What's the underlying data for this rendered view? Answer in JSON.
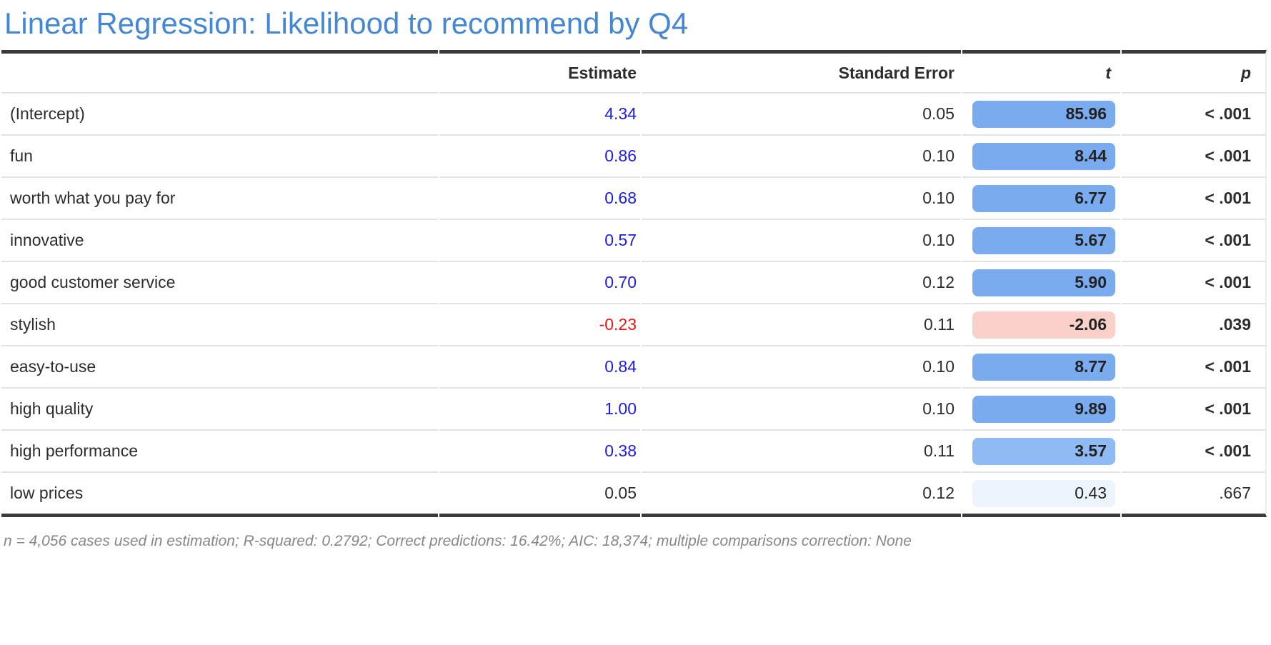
{
  "chart_data": {
    "type": "table",
    "title": "Linear Regression: Likelihood to recommend by Q4",
    "columns": [
      "",
      "Estimate",
      "Standard Error",
      "t",
      "p"
    ],
    "rows": [
      {
        "label": "(Intercept)",
        "estimate": "4.34",
        "estimate_color": "#1c1ce8",
        "standard_error": "0.05",
        "t": "85.96",
        "t_bar_color": "#7babef",
        "t_bold": true,
        "p": "< .001",
        "p_bold": true
      },
      {
        "label": "fun",
        "estimate": "0.86",
        "estimate_color": "#1c1ce8",
        "standard_error": "0.10",
        "t": "8.44",
        "t_bar_color": "#7babef",
        "t_bold": true,
        "p": "< .001",
        "p_bold": true
      },
      {
        "label": "worth what you pay for",
        "estimate": "0.68",
        "estimate_color": "#1c1ce8",
        "standard_error": "0.10",
        "t": "6.77",
        "t_bar_color": "#7babef",
        "t_bold": true,
        "p": "< .001",
        "p_bold": true
      },
      {
        "label": "innovative",
        "estimate": "0.57",
        "estimate_color": "#1c1ce8",
        "standard_error": "0.10",
        "t": "5.67",
        "t_bar_color": "#7babef",
        "t_bold": true,
        "p": "< .001",
        "p_bold": true
      },
      {
        "label": "good customer service",
        "estimate": "0.70",
        "estimate_color": "#1c1ce8",
        "standard_error": "0.12",
        "t": "5.90",
        "t_bar_color": "#7babef",
        "t_bold": true,
        "p": "< .001",
        "p_bold": true
      },
      {
        "label": "stylish",
        "estimate": "-0.23",
        "estimate_color": "#ed1515",
        "standard_error": "0.11",
        "t": "-2.06",
        "t_bar_color": "#fbcfca",
        "t_bold": true,
        "p": ".039",
        "p_bold": true
      },
      {
        "label": "easy-to-use",
        "estimate": "0.84",
        "estimate_color": "#1c1ce8",
        "standard_error": "0.10",
        "t": "8.77",
        "t_bar_color": "#7babef",
        "t_bold": true,
        "p": "< .001",
        "p_bold": true
      },
      {
        "label": "high quality",
        "estimate": "1.00",
        "estimate_color": "#1c1ce8",
        "standard_error": "0.10",
        "t": "9.89",
        "t_bar_color": "#7babef",
        "t_bold": true,
        "p": "< .001",
        "p_bold": true
      },
      {
        "label": "high performance",
        "estimate": "0.38",
        "estimate_color": "#1c1ce8",
        "standard_error": "0.11",
        "t": "3.57",
        "t_bar_color": "#8fbaf3",
        "t_bold": true,
        "p": "< .001",
        "p_bold": true
      },
      {
        "label": "low prices",
        "estimate": "0.05",
        "estimate_color": "#2d2d2d",
        "standard_error": "0.12",
        "t": "0.43",
        "t_bar_color": "#eef4fd",
        "t_bold": false,
        "p": ".667",
        "p_bold": false
      }
    ],
    "footnote": "n = 4,056 cases used in estimation; R-squared: 0.2792; Correct predictions: 16.42%; AIC: 18,374; multiple comparisons correction: None"
  },
  "colors": {
    "title_blue": "#4587d2",
    "bar_positive_strong": "#7babef",
    "bar_positive_weak": "#8fbaf3",
    "bar_nonsignificant": "#eef4fd",
    "bar_negative_pink": "#fbcfca",
    "estimate_positive_blue": "#1c1ce8",
    "estimate_negative_red": "#ed1515",
    "body_text": "#2d2d2d",
    "rule_dark": "#3a3a3a",
    "rule_light": "#e3e3e3",
    "footnote_gray": "#878787"
  }
}
